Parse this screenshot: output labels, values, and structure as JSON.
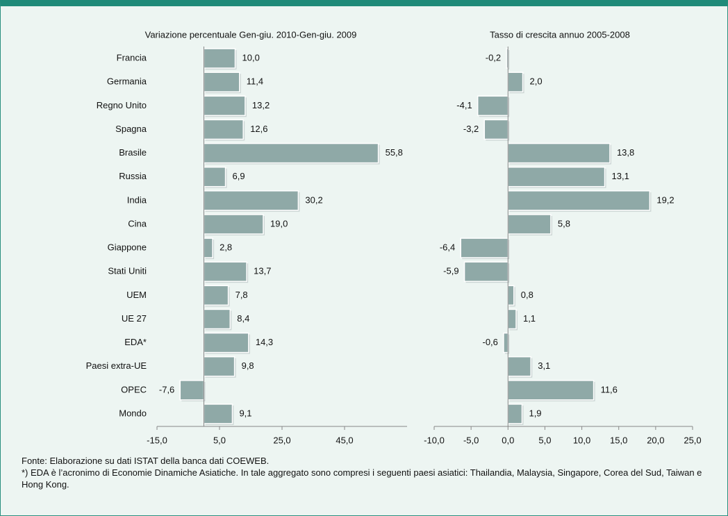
{
  "chart_data": [
    {
      "type": "bar",
      "orientation": "horizontal",
      "title": "Variazione percentuale Gen-giu. 2010-Gen-giu.  2009",
      "categories": [
        "Francia",
        "Germania",
        "Regno Unito",
        "Spagna",
        "Brasile",
        "Russia",
        "India",
        "Cina",
        "Giappone",
        "Stati Uniti",
        "UEM",
        "UE 27",
        "EDA*",
        "Paesi extra-UE",
        "OPEC",
        "Mondo"
      ],
      "values": [
        10.0,
        11.4,
        13.2,
        12.6,
        55.8,
        6.9,
        30.2,
        19.0,
        2.8,
        13.7,
        7.8,
        8.4,
        14.3,
        9.8,
        -7.6,
        9.1
      ],
      "value_labels": [
        "10,0",
        "11,4",
        "13,2",
        "12,6",
        "55,8",
        "6,9",
        "30,2",
        "19,0",
        "2,8",
        "13,7",
        "7,8",
        "8,4",
        "14,3",
        "9,8",
        "-7,6",
        "9,1"
      ],
      "color": "#8fa9a7",
      "xlim": [
        -15,
        65
      ],
      "xticks": [
        {
          "value": -15,
          "label": "-15,0"
        },
        {
          "value": 5,
          "label": "5,0"
        },
        {
          "value": 25,
          "label": "25,0"
        },
        {
          "value": 45,
          "label": "45,0"
        }
      ]
    },
    {
      "type": "bar",
      "orientation": "horizontal",
      "title": "Tasso di crescita annuo 2005-2008",
      "values": [
        -0.2,
        2.0,
        -4.1,
        -3.2,
        13.8,
        13.1,
        19.2,
        5.8,
        -6.4,
        -5.9,
        0.8,
        1.1,
        -0.6,
        3.1,
        11.6,
        1.9
      ],
      "value_labels": [
        "-0,2",
        "2,0",
        "-4,1",
        "-3,2",
        "13,8",
        "13,1",
        "19,2",
        "5,8",
        "-6,4",
        "-5,9",
        "0,8",
        "1,1",
        "-0,6",
        "3,1",
        "11,6",
        "1,9"
      ],
      "color": "#8fa9a7",
      "xlim": [
        -10,
        25
      ],
      "xticks": [
        {
          "value": -10,
          "label": "-10,0"
        },
        {
          "value": -5,
          "label": "-5,0"
        },
        {
          "value": 0,
          "label": "0,0"
        },
        {
          "value": 5,
          "label": "5,0"
        },
        {
          "value": 10,
          "label": "10,0"
        },
        {
          "value": 15,
          "label": "15,0"
        },
        {
          "value": 20,
          "label": "20,0"
        },
        {
          "value": 25,
          "label": "25,0"
        }
      ]
    }
  ],
  "notes": [
    "Fonte: Elaborazione su dati ISTAT della banca dati COEWEB.",
    "*) EDA è l’acronimo di Economie Dinamiche Asiatiche. In tale aggregato sono compresi i seguenti paesi asiatici: Thailandia, Malaysia, Singapore, Corea del Sud, Taiwan e Hong Kong."
  ]
}
